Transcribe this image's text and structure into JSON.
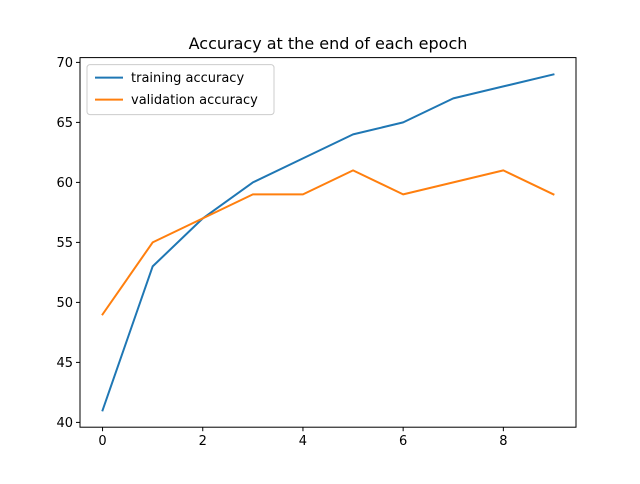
{
  "chart_data": {
    "type": "line",
    "title": "Accuracy at the end of each epoch",
    "xlabel": "",
    "ylabel": "",
    "xlim": [
      -0.45,
      9.45
    ],
    "ylim": [
      39.6,
      70.4
    ],
    "xticks": [
      0,
      2,
      4,
      6,
      8
    ],
    "yticks": [
      40,
      45,
      50,
      55,
      60,
      65,
      70
    ],
    "x": [
      0,
      1,
      2,
      3,
      4,
      5,
      6,
      7,
      8,
      9
    ],
    "series": [
      {
        "name": "training accuracy",
        "color": "#1f77b4",
        "values": [
          41,
          53,
          57,
          60,
          62,
          64,
          65,
          67,
          68,
          69
        ]
      },
      {
        "name": "validation accuracy",
        "color": "#ff7f0e",
        "values": [
          49,
          55,
          57,
          59,
          59,
          61,
          59,
          60,
          61,
          59
        ]
      }
    ],
    "legend": "top-left",
    "grid": false
  }
}
